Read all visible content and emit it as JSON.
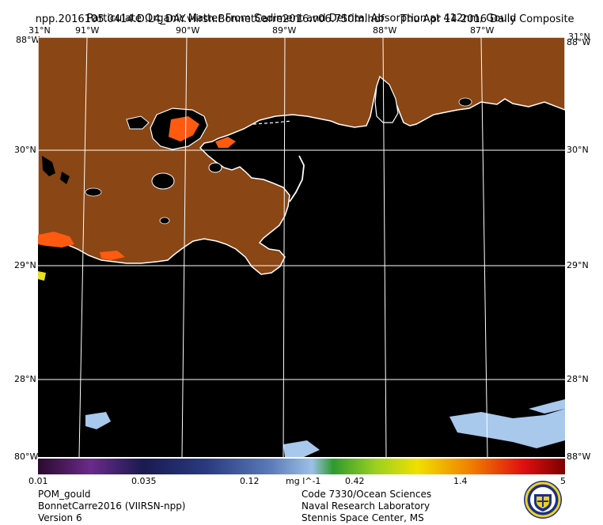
{
  "header": {
    "filename": "npp.2016105.0414.D.L4_DAY.viirsn.BonnetCarre2016.v06.750m.hdf",
    "date": "Thu Apr 14 2016 Daily Composite",
    "product": "Particulate Organic Matter From Sediment and Detrital Absorption at 412nm, Gould"
  },
  "axes": {
    "longitudes": [
      {
        "label": "91°W",
        "value": -91
      },
      {
        "label": "90°W",
        "value": -90
      },
      {
        "label": "89°W",
        "value": -89
      },
      {
        "label": "88°W",
        "value": -88
      },
      {
        "label": "87°W",
        "value": -87
      }
    ],
    "latitudes": [
      {
        "label": "30°N",
        "value": 30
      },
      {
        "label": "29°N",
        "value": 29
      },
      {
        "label": "28°N",
        "value": 28
      }
    ],
    "corner_top_left": "31°N",
    "corner_top_right": "31°N",
    "corner_side_top": "88°W",
    "corner_bottom_left": "80°W",
    "corner_bottom_right": "88°W"
  },
  "colorbar": {
    "ticks": [
      "0.01",
      "0.035",
      "0.12",
      "0.42",
      "1.4",
      "5"
    ],
    "unit": "mg l^-1",
    "colors": [
      "#2a0a2e",
      "#6a2a8a",
      "#1a1a50",
      "#2a3a80",
      "#5a7ab8",
      "#9cc0e8",
      "#2e9a2e",
      "#9ad020",
      "#f0e000",
      "#f08000",
      "#e01010",
      "#7a0000"
    ]
  },
  "footer": {
    "left": [
      "POM_gould",
      "BonnetCarre2016 (VIIRSN-npp)",
      "Version 6"
    ],
    "right": [
      "Code 7330/Ocean Sciences",
      "Naval Research Laboratory",
      "Stennis Space Center, MS"
    ]
  },
  "map_colors": {
    "land": "#8a4614",
    "water": "#000000",
    "coast": "#ffffff",
    "grid": "#ffffff",
    "high": "#ff5a10",
    "low": "#a8c8ec"
  }
}
